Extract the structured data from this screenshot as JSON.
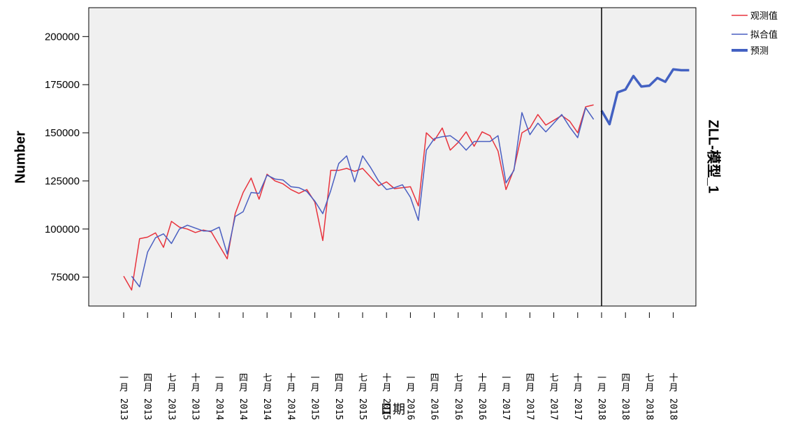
{
  "chart_data": {
    "type": "line",
    "title": "",
    "ylabel": "Number",
    "xlabel": "日期",
    "panel_label": "ZLL-模型_1",
    "ylim": [
      60000,
      215000
    ],
    "yticks": [
      75000,
      100000,
      125000,
      150000,
      175000,
      200000
    ],
    "ytick_labels": [
      "75000",
      "100000",
      "125000",
      "150000",
      "175000",
      "200000"
    ],
    "x_tick_labels": [
      {
        "month": "一月",
        "year": "2013"
      },
      {
        "month": "四月",
        "year": "2013"
      },
      {
        "month": "七月",
        "year": "2013"
      },
      {
        "month": "十月",
        "year": "2013"
      },
      {
        "month": "一月",
        "year": "2014"
      },
      {
        "month": "四月",
        "year": "2014"
      },
      {
        "month": "七月",
        "year": "2014"
      },
      {
        "month": "十月",
        "year": "2014"
      },
      {
        "month": "一月",
        "year": "2015"
      },
      {
        "month": "四月",
        "year": "2015"
      },
      {
        "month": "七月",
        "year": "2015"
      },
      {
        "month": "十月",
        "year": "2015"
      },
      {
        "month": "一月",
        "year": "2016"
      },
      {
        "month": "四月",
        "year": "2016"
      },
      {
        "month": "七月",
        "year": "2016"
      },
      {
        "month": "十月",
        "year": "2016"
      },
      {
        "month": "一月",
        "year": "2017"
      },
      {
        "month": "四月",
        "year": "2017"
      },
      {
        "month": "七月",
        "year": "2017"
      },
      {
        "month": "十月",
        "year": "2017"
      },
      {
        "month": "一月",
        "year": "2018"
      },
      {
        "month": "四月",
        "year": "2018"
      },
      {
        "month": "七月",
        "year": "2018"
      },
      {
        "month": "十月",
        "year": "2018"
      }
    ],
    "x_start": "2013-01",
    "forecast_start": "2018-01",
    "x_end": "2019-03",
    "grid": false,
    "legend_position": "top-right",
    "background_color": "#f0f0f0",
    "series": [
      {
        "name": "观测值",
        "color": "#e8333d",
        "values": [
          75500,
          68300,
          95000,
          95800,
          98000,
          90500,
          104000,
          101000,
          100000,
          98200,
          99500,
          98500,
          91500,
          84500,
          108000,
          119000,
          126500,
          115500,
          128500,
          125000,
          123500,
          120500,
          118500,
          120500,
          114000,
          94000,
          130500,
          130500,
          131500,
          130000,
          131500,
          127000,
          122500,
          124500,
          121000,
          121500,
          122000,
          112000,
          150000,
          146000,
          152500,
          141000,
          145000,
          150500,
          143000,
          150500,
          148500,
          140500,
          120500,
          131000,
          150000,
          152500,
          159500,
          154000,
          156500,
          159000,
          156000,
          150000,
          163500,
          164500
        ]
      },
      {
        "name": "拟合值",
        "color": "#4a5fc1",
        "start_index": 1,
        "values": [
          75500,
          70000,
          88000,
          95500,
          97500,
          92500,
          100000,
          102000,
          100500,
          99000,
          99000,
          101000,
          87000,
          106500,
          109000,
          119000,
          118500,
          128000,
          126000,
          125500,
          122000,
          121500,
          119500,
          114500,
          108000,
          120000,
          134000,
          138000,
          124500,
          138000,
          132000,
          125000,
          120500,
          121500,
          123000,
          116500,
          104500,
          141000,
          147000,
          148000,
          148500,
          145500,
          141000,
          145500,
          145500,
          145500,
          148500,
          124000,
          130500,
          160500,
          149000,
          155000,
          150500,
          155000,
          159500,
          153000,
          147500,
          163000,
          157000
        ]
      },
      {
        "name": "预测",
        "color": "#4361c2",
        "start_index": 60,
        "values": [
          161500,
          154500,
          171000,
          172500,
          179500,
          174000,
          174500,
          178500,
          176500,
          183000,
          182500,
          182500
        ]
      }
    ]
  }
}
